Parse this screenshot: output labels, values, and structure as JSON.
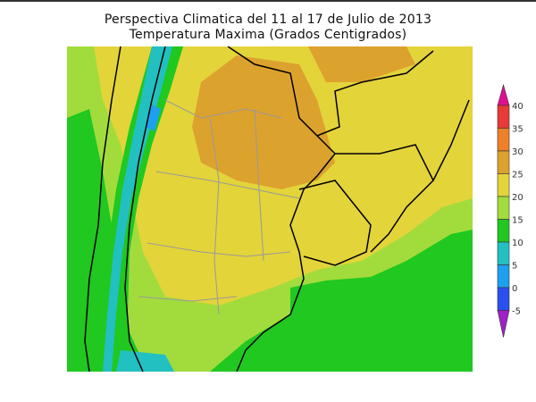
{
  "title": "Perspectiva Climatica del 11 al 17 de Julio de 2013",
  "subtitle": "Temperatura Maxima (Grados Centigrados)",
  "colorbar": {
    "labels": [
      "40",
      "35",
      "30",
      "25",
      "20",
      "15",
      "10",
      "5",
      "0",
      "-5"
    ],
    "colors": {
      "above_40": "#e01090",
      "35_40": "#e83a38",
      "30_35": "#ee8028",
      "25_30": "#dca22e",
      "20_25": "#e3d43a",
      "15_20": "#a2dc3c",
      "10_15": "#20c820",
      "5_10": "#22c0c0",
      "0_5": "#1ea0f0",
      "-5_0": "#2a50f0",
      "below_-5": "#a020c8"
    }
  }
}
